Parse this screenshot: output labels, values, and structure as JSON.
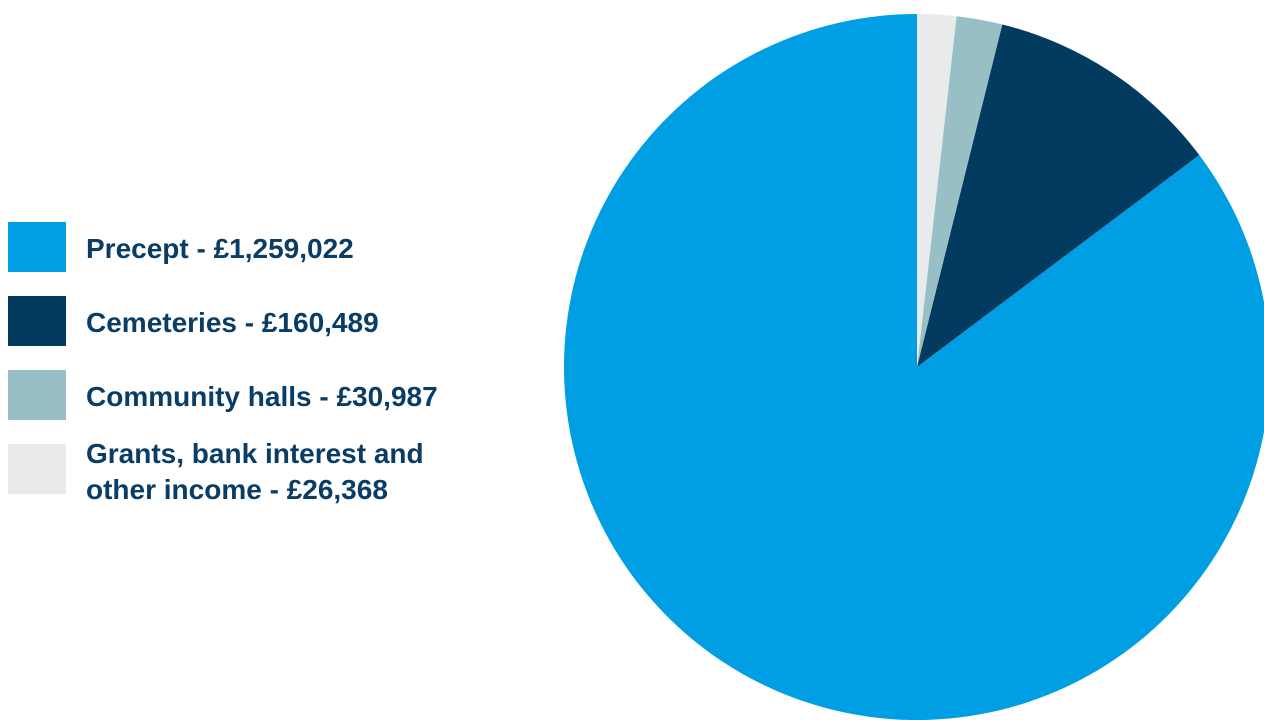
{
  "chart_data": {
    "type": "pie",
    "title": "",
    "slices": [
      {
        "label": "Precept - £1,259,022",
        "name": "Precept",
        "value": 1259022,
        "color": "#009fe3"
      },
      {
        "label": "Cemeteries - £160,489",
        "name": "Cemeteries",
        "value": 160489,
        "color": "#023a60"
      },
      {
        "label": "Community halls - £30,987",
        "name": "Community halls",
        "value": 30987,
        "color": "#97bfc5"
      },
      {
        "label": "Grants, bank interest and\nother income - £26,368",
        "name": "Grants, bank interest and other income",
        "value": 26368,
        "color": "#e9eaec"
      }
    ],
    "start_angle_deg": 0,
    "direction": "counterclockwise",
    "legend_placement": "left"
  }
}
